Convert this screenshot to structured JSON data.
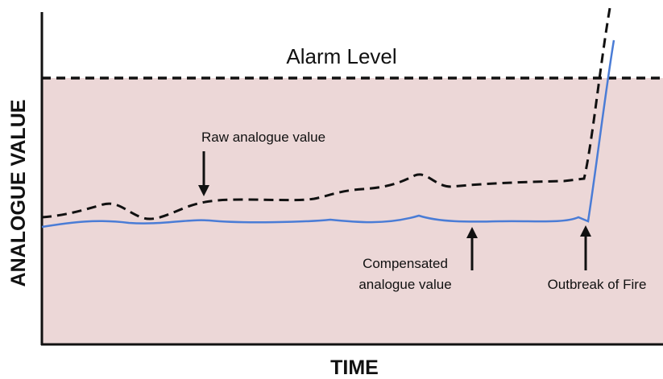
{
  "title": "Alarm Level",
  "annotations": {
    "raw": "Raw analogue value",
    "compensated": [
      "Compensated",
      "analogue value"
    ],
    "outbreak": "Outbreak of Fire"
  },
  "axes": {
    "y_label": "ANALOGUE VALUE",
    "x_label": "TIME"
  }
}
